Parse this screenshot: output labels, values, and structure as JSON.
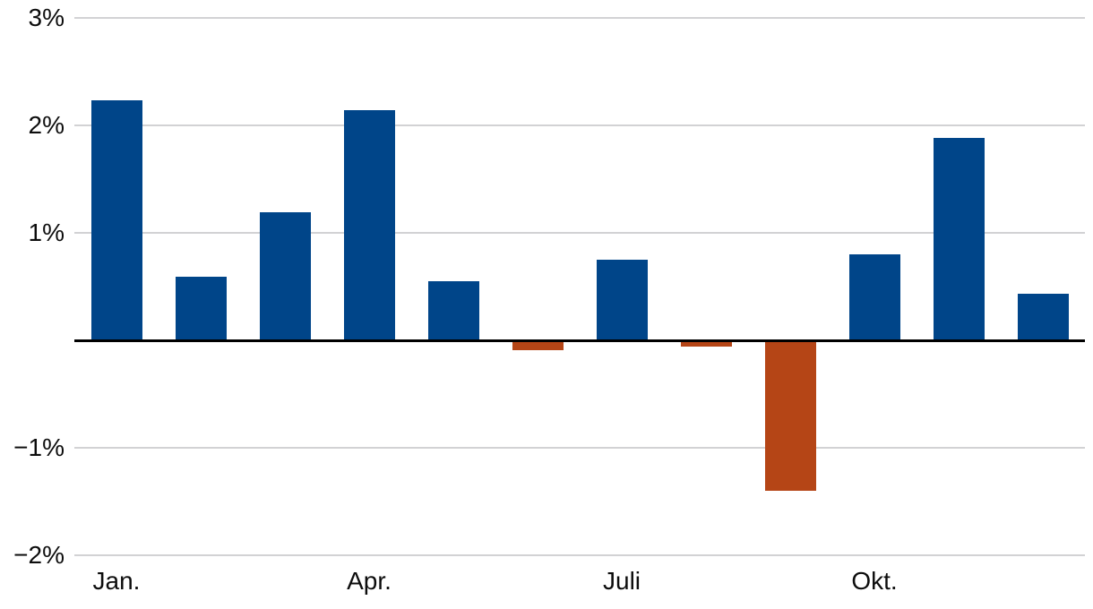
{
  "chart_data": {
    "type": "bar",
    "title": "",
    "xlabel": "",
    "ylabel": "",
    "values": [
      2.23,
      0.59,
      1.19,
      2.14,
      0.55,
      -0.09,
      0.75,
      -0.06,
      -1.4,
      0.8,
      1.88,
      0.43
    ],
    "x_tick_labels": [
      {
        "index": 0,
        "label": "Jan."
      },
      {
        "index": 3,
        "label": "Apr."
      },
      {
        "index": 6,
        "label": "Juli"
      },
      {
        "index": 9,
        "label": "Okt."
      }
    ],
    "y_ticks": [
      {
        "value": 3,
        "label": "3%"
      },
      {
        "value": 2,
        "label": "2%"
      },
      {
        "value": 1,
        "label": "1%"
      },
      {
        "value": -1,
        "label": "−1%"
      },
      {
        "value": -2,
        "label": "−2%"
      }
    ],
    "ylim": [
      -2,
      3
    ],
    "grid": true,
    "legend": "none",
    "colors": {
      "positive_bar": "#004589",
      "negative_bar": "#b54516",
      "gridline": "#d2d2d4",
      "zero_axis": "#000000",
      "text": "#0d0d0d",
      "background": "#ffffff"
    }
  }
}
